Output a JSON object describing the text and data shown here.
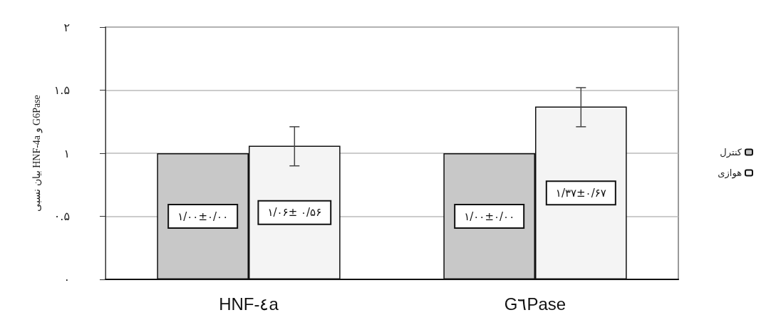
{
  "chart_data": {
    "type": "bar",
    "ylabel": "بیان نسبی HNF-4a و G6Pase",
    "categories": [
      "HNF-٤a",
      "G٦Pase"
    ],
    "series": [
      {
        "name": "کنترل",
        "color": "#c8c8c8",
        "values": [
          1.0,
          1.0
        ],
        "value_labels": [
          "۱/۰۰±۰/۰۰",
          "۱/۰۰±۰/۰۰"
        ]
      },
      {
        "name": "هوازی",
        "color": "#f4f4f4",
        "values": [
          1.06,
          1.37
        ],
        "errors": [
          [
            0.9,
            1.21
          ],
          [
            1.21,
            1.52
          ]
        ],
        "value_labels": [
          "۱/۰۶± ۰/۵۶",
          "۱/۳۷±۰/۶۷"
        ]
      }
    ],
    "ylim": [
      0,
      2
    ],
    "yticks": [
      {
        "value": 0,
        "label": "۰"
      },
      {
        "value": 0.5,
        "label": "۰.۵"
      },
      {
        "value": 1,
        "label": "۱"
      },
      {
        "value": 1.5,
        "label": "۱.۵"
      },
      {
        "value": 2,
        "label": "۲"
      }
    ],
    "grid": "y",
    "legend": "right"
  }
}
